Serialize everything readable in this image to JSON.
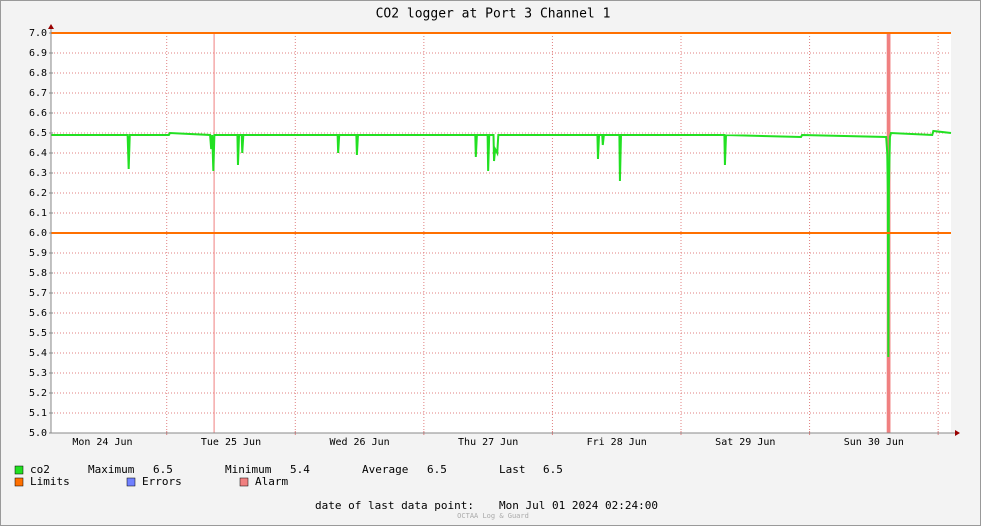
{
  "chart_data": {
    "type": "line",
    "title": "CO2 logger at Port 3 Channel 1",
    "xlim": [
      0,
      168
    ],
    "xticks": [
      {
        "value": 9.6,
        "label": "Mon 24 Jun"
      },
      {
        "value": 33.6,
        "label": "Tue 25 Jun"
      },
      {
        "value": 57.6,
        "label": "Wed 26 Jun"
      },
      {
        "value": 81.6,
        "label": "Thu 27 Jun"
      },
      {
        "value": 105.6,
        "label": "Fri 28 Jun"
      },
      {
        "value": 129.6,
        "label": "Sat 29 Jun"
      },
      {
        "value": 153.6,
        "label": "Sun 30 Jun"
      }
    ],
    "xgrid": [
      21.6,
      45.6,
      69.6,
      93.6,
      117.6,
      141.6,
      165.6
    ],
    "ylim": [
      5,
      7
    ],
    "yticks": [
      {
        "value": 5,
        "label": "5.0"
      },
      5.1,
      5.2,
      5.3,
      5.4,
      5.5,
      5.6,
      5.7,
      5.8,
      5.9,
      {
        "value": 6,
        "label": "6.0"
      },
      6.1,
      6.2,
      6.3,
      6.4,
      6.5,
      6.6,
      6.7,
      6.8,
      6.9,
      {
        "value": 7,
        "label": "7.0"
      }
    ],
    "grid": true,
    "series": [
      {
        "name": "co2",
        "color": "#22e022",
        "x": [
          0,
          14.3,
          14.5,
          14.7,
          22,
          22.2,
          29.7,
          29.9,
          30.1,
          30.3,
          30.5,
          34.8,
          34.9,
          35.1,
          35.6,
          35.7,
          35.9,
          53.5,
          53.6,
          53.8,
          57.0,
          57.1,
          57.3,
          79.2,
          79.3,
          79.5,
          81.5,
          81.6,
          81.8,
          82.6,
          82.7,
          82.9,
          83.3,
          83.5,
          102.0,
          102.1,
          102.3,
          102.9,
          103.0,
          103.2,
          106.1,
          106.2,
          106.4,
          125.7,
          125.8,
          126.0,
          140,
          140.2,
          155.9,
          156.1,
          156.2,
          156.3,
          156.4,
          156.6,
          156.8,
          164.5,
          164.7,
          168
        ],
        "values": [
          6.49,
          6.49,
          6.32,
          6.49,
          6.49,
          6.5,
          6.49,
          6.42,
          6.49,
          6.31,
          6.49,
          6.49,
          6.34,
          6.49,
          6.49,
          6.4,
          6.49,
          6.49,
          6.4,
          6.49,
          6.49,
          6.39,
          6.49,
          6.49,
          6.38,
          6.49,
          6.49,
          6.31,
          6.49,
          6.49,
          6.36,
          6.42,
          6.4,
          6.49,
          6.49,
          6.37,
          6.49,
          6.49,
          6.44,
          6.49,
          6.49,
          6.26,
          6.49,
          6.49,
          6.34,
          6.49,
          6.48,
          6.49,
          6.48,
          6.4,
          6.22,
          5.38,
          6.22,
          6.48,
          6.5,
          6.49,
          6.51,
          6.5
        ],
        "stats": [
          {
            "label": "Maximum",
            "value": 6.5
          },
          {
            "label": "Minimum",
            "value": 5.4
          },
          {
            "label": "Average",
            "value": 6.5
          },
          {
            "label": "Last",
            "value": 6.5
          }
        ]
      },
      {
        "name": "Limits",
        "color": "#ff7000",
        "values": [
          6.0,
          7.0
        ]
      },
      {
        "name": "Errors",
        "color": "#7080ff",
        "values": []
      },
      {
        "name": "Alarm",
        "color": "#f08080",
        "periods": [
          [
            30.35,
            30.45
          ],
          [
            156.0,
            156.7
          ]
        ]
      }
    ],
    "footer": {
      "label": "date of last data point:",
      "value": "Mon Jul 01 2024 02:24:00"
    },
    "watermark": "OCTAA Log & Guard"
  }
}
